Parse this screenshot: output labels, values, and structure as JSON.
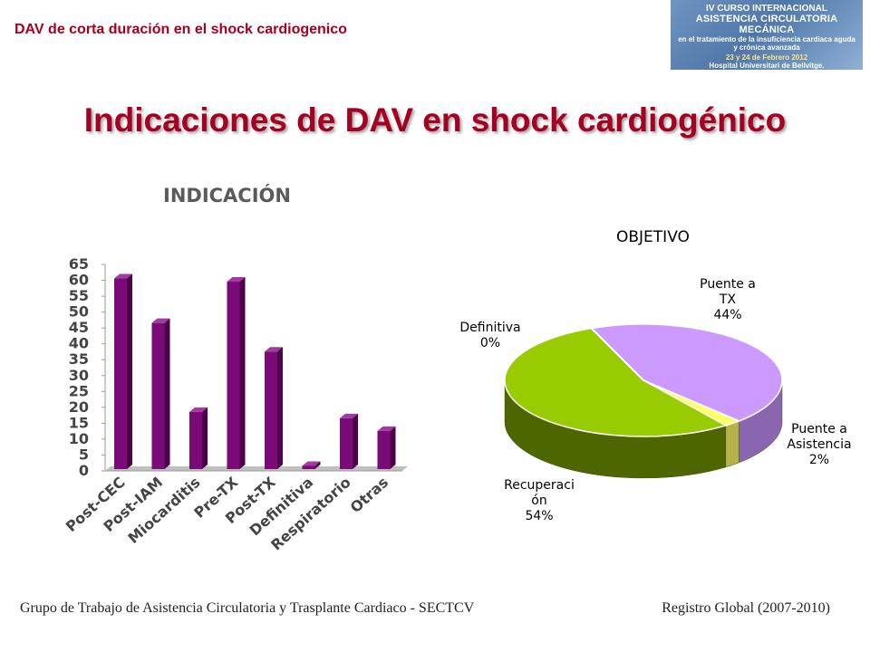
{
  "header": {
    "title": "DAV de corta duración en el shock cardiogenico"
  },
  "logo": {
    "line1": "IV CURSO INTERNACIONAL",
    "line2": "ASISTENCIA CIRCULATORIA MECÁNICA",
    "line3": "en el tratamiento de la insuficiencia cardiaca aguda",
    "line4": "y crónica avanzada",
    "line5": "23 y 24 de Febrero 2012",
    "line6": "Hospital Universitari de Bellvitge."
  },
  "main_title": "Indicaciones de DAV en shock cardiogénico",
  "chart_data": [
    {
      "type": "bar",
      "title": "INDICACIÓN",
      "categories": [
        "Post-CEC",
        "Post-IAM",
        "Miocarditis",
        "Pre-TX",
        "Post-TX",
        "Definitiva",
        "Respiratorio",
        "Otras"
      ],
      "values": [
        60,
        46,
        18,
        59,
        37,
        1,
        16,
        12
      ],
      "ylim": [
        0,
        65
      ],
      "yticks": [
        "0",
        "5",
        "10",
        "15",
        "20",
        "25",
        "30",
        "35",
        "40",
        "45",
        "50",
        "55",
        "60",
        "65"
      ],
      "grid": false,
      "colors": {
        "bar": "#7a0a78",
        "bar_top": "#a23aa0",
        "bar_side": "#4d0049",
        "floor": "#c0c0c0"
      }
    },
    {
      "type": "pie",
      "title": "OBJETIVO",
      "slices": [
        {
          "label_lines": [
            "Puente a",
            "TX",
            "44%"
          ],
          "value": 44,
          "color": "#cc99ff",
          "side": "#8a66b0"
        },
        {
          "label_lines": [
            "Puente a",
            "Asistencia",
            "2%"
          ],
          "value": 2,
          "color": "#ffff66",
          "side": "#b3b34a"
        },
        {
          "label_lines": [
            "Recuperaci",
            "ón",
            "54%"
          ],
          "value": 54,
          "color": "#99cc00",
          "side": "#4d6600"
        },
        {
          "label_lines": [
            "Definitiva",
            "0%"
          ],
          "value": 0,
          "color": "#ffffff",
          "side": "#cccccc"
        }
      ]
    }
  ],
  "footer": {
    "left": "Grupo de Trabajo de Asistencia Circulatoria y Trasplante Cardiaco - SECTCV",
    "right": "Registro Global (2007-2010)"
  },
  "colors": {
    "accent": "#a50021"
  }
}
